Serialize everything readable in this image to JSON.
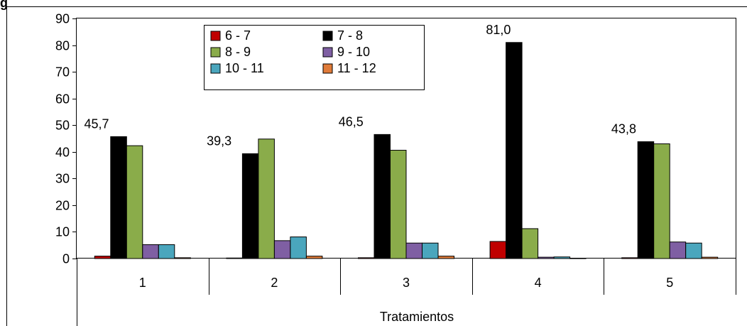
{
  "header": {
    "fragment": "g"
  },
  "chart_data": {
    "type": "bar",
    "categories": [
      "1",
      "2",
      "3",
      "4",
      "5"
    ],
    "xlabel": "Tratamientos",
    "ylabel": "",
    "ylim": [
      0,
      90
    ],
    "yticks": [
      0,
      10,
      20,
      30,
      40,
      50,
      60,
      70,
      80,
      90
    ],
    "grid": false,
    "legend_position": "top",
    "series": [
      {
        "name": "6 - 7",
        "color": "#c00000",
        "values": [
          0.9,
          0.2,
          0.3,
          6.4,
          0.3
        ]
      },
      {
        "name": "7 - 8",
        "color": "#000000",
        "values": [
          45.7,
          39.3,
          46.5,
          81.0,
          43.8
        ]
      },
      {
        "name": "8 - 9",
        "color": "#8aac4a",
        "values": [
          42.3,
          44.8,
          40.6,
          11.2,
          43.0
        ]
      },
      {
        "name": "9 - 10",
        "color": "#7f5fa3",
        "values": [
          5.2,
          6.7,
          5.8,
          0.5,
          6.2
        ]
      },
      {
        "name": "10 - 11",
        "color": "#4aa6bd",
        "values": [
          5.2,
          8.1,
          5.8,
          0.6,
          5.8
        ]
      },
      {
        "name": "11 - 12",
        "color": "#e07b39",
        "values": [
          0.3,
          0.9,
          0.9,
          0.1,
          0.5
        ]
      }
    ],
    "data_labels": [
      {
        "category": "1",
        "series": "7 - 8",
        "text": "45,7"
      },
      {
        "category": "2",
        "series": "7 - 8",
        "text": "39,3"
      },
      {
        "category": "3",
        "series": "7 - 8",
        "text": "46,5"
      },
      {
        "category": "4",
        "series": "7 - 8",
        "text": "81,0"
      },
      {
        "category": "5",
        "series": "7 - 8",
        "text": "43,8"
      }
    ]
  }
}
